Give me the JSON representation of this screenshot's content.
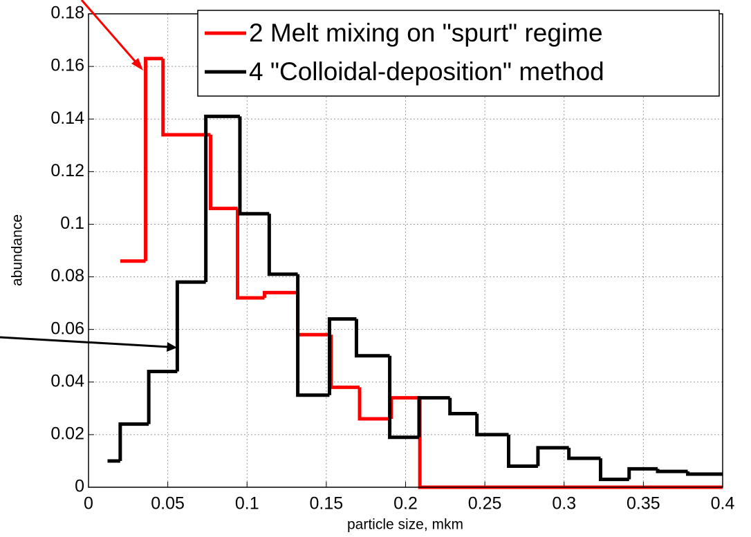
{
  "chart_data": {
    "type": "step",
    "xlabel": "particle size, mkm",
    "ylabel": "abundance",
    "xlim": [
      0,
      0.4
    ],
    "ylim": [
      0,
      0.18
    ],
    "xticks": [
      0,
      0.05,
      0.1,
      0.15,
      0.2,
      0.25,
      0.3,
      0.35,
      0.4
    ],
    "yticks": [
      0,
      0.02,
      0.04,
      0.06,
      0.08,
      0.1,
      0.12,
      0.14,
      0.16,
      0.18
    ],
    "grid": true,
    "legend": "upper right",
    "series": [
      {
        "name": "2 Melt mixing on \"spurt\" regime",
        "color": "#ff0000",
        "x": [
          0.02,
          0.036,
          0.047,
          0.077,
          0.094,
          0.111,
          0.132,
          0.153,
          0.171,
          0.191,
          0.209,
          0.4
        ],
        "values": [
          0.086,
          0.163,
          0.134,
          0.106,
          0.072,
          0.074,
          0.058,
          0.038,
          0.026,
          0.034,
          0,
          0
        ]
      },
      {
        "name": "4 \"Colloidal-deposition\" method",
        "color": "#000000",
        "x": [
          0.012,
          0.02,
          0.038,
          0.056,
          0.074,
          0.0955,
          0.114,
          0.132,
          0.152,
          0.169,
          0.19,
          0.2085,
          0.228,
          0.245,
          0.265,
          0.2835,
          0.303,
          0.323,
          0.341,
          0.359,
          0.378,
          0.4
        ],
        "values": [
          0.01,
          0.024,
          0.044,
          0.078,
          0.141,
          0.104,
          0.081,
          0.035,
          0.064,
          0.05,
          0.019,
          0.034,
          0.028,
          0.02,
          0.008,
          0.015,
          0.011,
          0.003,
          0.007,
          0.006,
          0.005,
          0.005
        ]
      }
    ]
  }
}
